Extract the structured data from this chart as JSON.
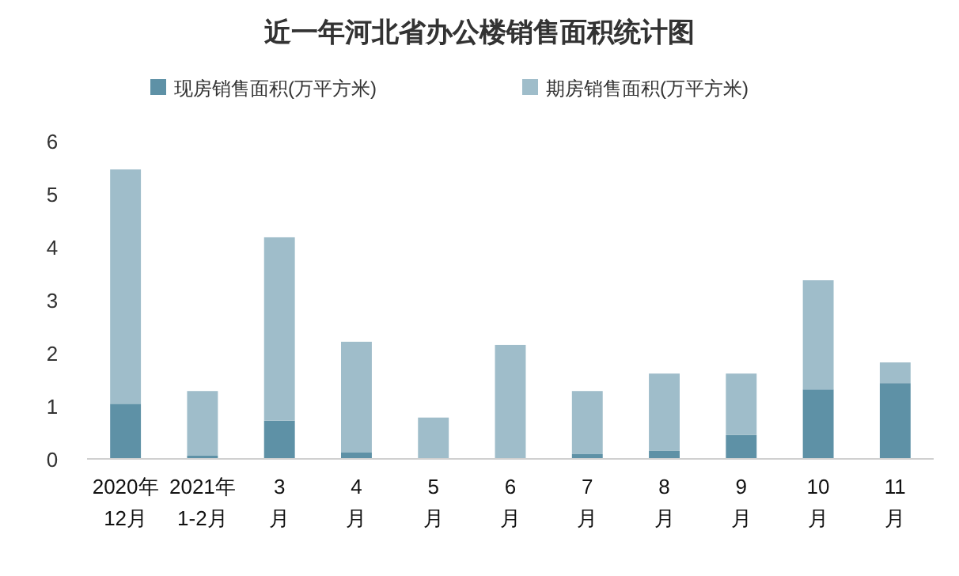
{
  "chart_data": {
    "type": "bar",
    "title": "近一年河北省办公楼销售面积统计图",
    "stacked": true,
    "legend": "top",
    "grid": false,
    "categories": [
      "2020年\n12月",
      "2021年\n1-2月",
      "3\n月",
      "4\n月",
      "5\n月",
      "6\n月",
      "7\n月",
      "8\n月",
      "9\n月",
      "10\n月",
      "11\n月"
    ],
    "series": [
      {
        "name": "现房销售面积(万平方米)",
        "color": "#5e91a6",
        "values": [
          1.04,
          0.06,
          0.72,
          0.12,
          0,
          0,
          0.09,
          0.15,
          0.45,
          1.31,
          1.43
        ]
      },
      {
        "name": "期房销售面积(万平方米)",
        "color": "#9fbdca",
        "values": [
          4.42,
          1.22,
          3.46,
          2.09,
          0.78,
          2.15,
          1.19,
          1.46,
          1.16,
          2.06,
          0.39
        ]
      }
    ],
    "ylim": [
      0,
      6
    ],
    "yticks": [
      0,
      1,
      2,
      3,
      4,
      5,
      6
    ]
  }
}
